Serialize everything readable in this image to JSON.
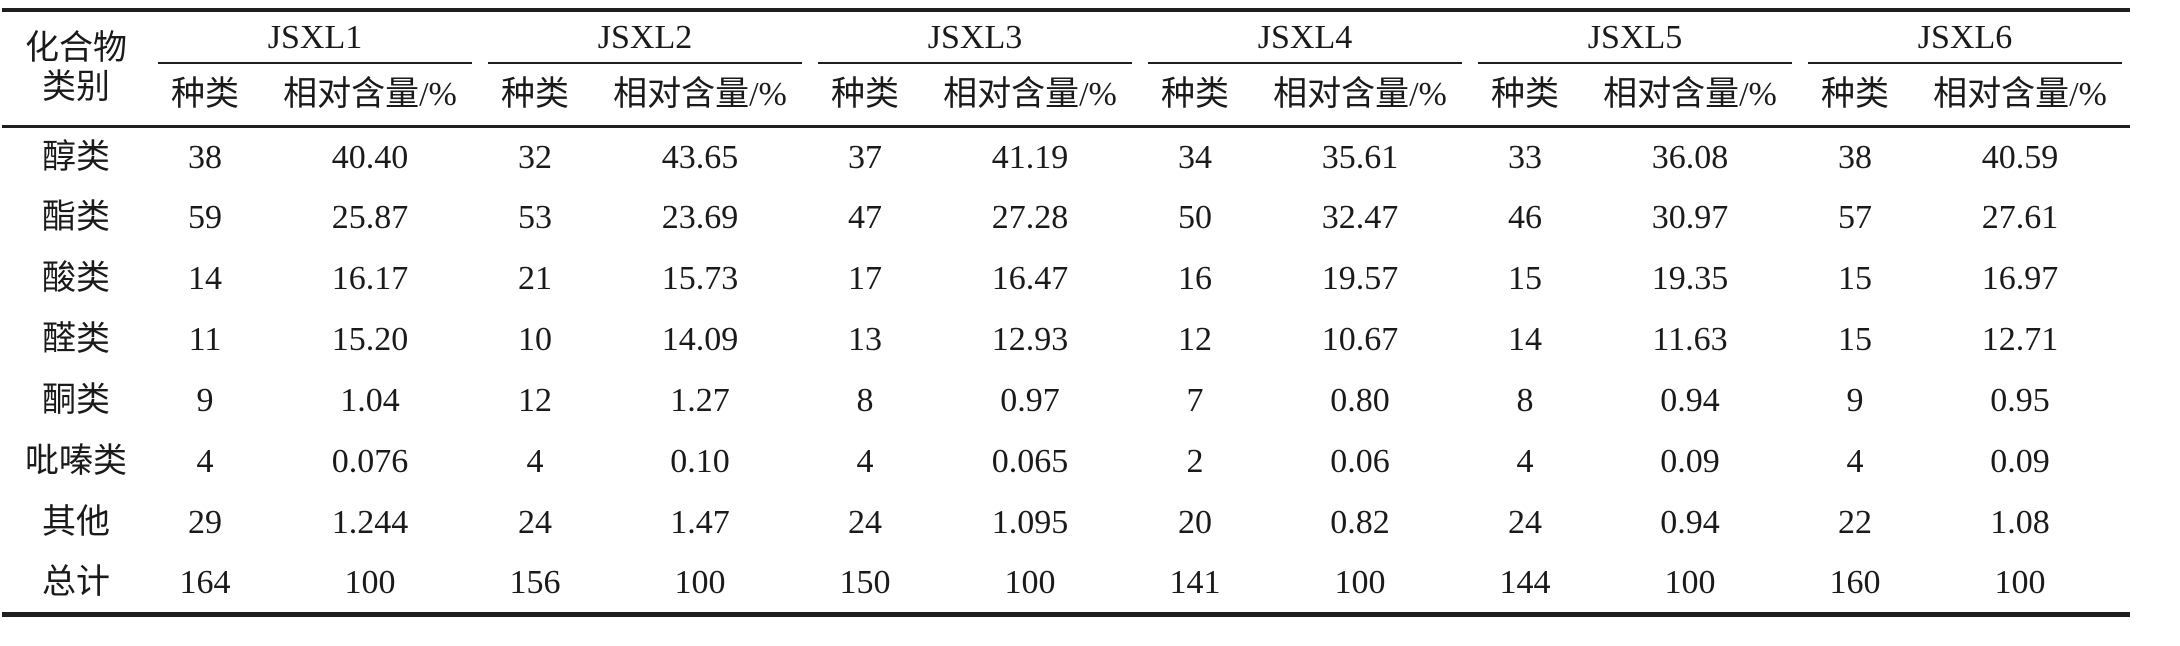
{
  "page": {
    "background": "#ffffff",
    "text_color": "#1a1a1a",
    "rule_color": "#1f1f1f"
  },
  "table": {
    "corner_header": {
      "line1": "化合物",
      "line2": "类别"
    },
    "groups": [
      {
        "label": "JSXL1"
      },
      {
        "label": "JSXL2"
      },
      {
        "label": "JSXL3"
      },
      {
        "label": "JSXL4"
      },
      {
        "label": "JSXL5"
      },
      {
        "label": "JSXL6"
      }
    ],
    "subheaders": {
      "species": "种类",
      "relative_content": "相对含量/%"
    },
    "rows": [
      {
        "category": "醇类",
        "cells": [
          "38",
          "40.40",
          "32",
          "43.65",
          "37",
          "41.19",
          "34",
          "35.61",
          "33",
          "36.08",
          "38",
          "40.59"
        ]
      },
      {
        "category": "酯类",
        "cells": [
          "59",
          "25.87",
          "53",
          "23.69",
          "47",
          "27.28",
          "50",
          "32.47",
          "46",
          "30.97",
          "57",
          "27.61"
        ]
      },
      {
        "category": "酸类",
        "cells": [
          "14",
          "16.17",
          "21",
          "15.73",
          "17",
          "16.47",
          "16",
          "19.57",
          "15",
          "19.35",
          "15",
          "16.97"
        ]
      },
      {
        "category": "醛类",
        "cells": [
          "11",
          "15.20",
          "10",
          "14.09",
          "13",
          "12.93",
          "12",
          "10.67",
          "14",
          "11.63",
          "15",
          "12.71"
        ]
      },
      {
        "category": "酮类",
        "cells": [
          "9",
          "1.04",
          "12",
          "1.27",
          "8",
          "0.97",
          "7",
          "0.80",
          "8",
          "0.94",
          "9",
          "0.95"
        ]
      },
      {
        "category": "吡嗪类",
        "cells": [
          "4",
          "0.076",
          "4",
          "0.10",
          "4",
          "0.065",
          "2",
          "0.06",
          "4",
          "0.09",
          "4",
          "0.09"
        ]
      },
      {
        "category": "其他",
        "cells": [
          "29",
          "1.244",
          "24",
          "1.47",
          "24",
          "1.095",
          "20",
          "0.82",
          "24",
          "0.94",
          "22",
          "1.08"
        ]
      },
      {
        "category": "总计",
        "cells": [
          "164",
          "100",
          "156",
          "100",
          "150",
          "100",
          "141",
          "100",
          "144",
          "100",
          "160",
          "100"
        ]
      }
    ]
  },
  "chart_data": {
    "type": "table",
    "title": "",
    "row_header": "化合物类别",
    "column_groups": [
      "JSXL1",
      "JSXL2",
      "JSXL3",
      "JSXL4",
      "JSXL5",
      "JSXL6"
    ],
    "sub_columns": [
      "种类",
      "相对含量/%"
    ],
    "rows": [
      {
        "category": "醇类",
        "values": [
          38,
          40.4,
          32,
          43.65,
          37,
          41.19,
          34,
          35.61,
          33,
          36.08,
          38,
          40.59
        ]
      },
      {
        "category": "酯类",
        "values": [
          59,
          25.87,
          53,
          23.69,
          47,
          27.28,
          50,
          32.47,
          46,
          30.97,
          57,
          27.61
        ]
      },
      {
        "category": "酸类",
        "values": [
          14,
          16.17,
          21,
          15.73,
          17,
          16.47,
          16,
          19.57,
          15,
          19.35,
          15,
          16.97
        ]
      },
      {
        "category": "醛类",
        "values": [
          11,
          15.2,
          10,
          14.09,
          13,
          12.93,
          12,
          10.67,
          14,
          11.63,
          15,
          12.71
        ]
      },
      {
        "category": "酮类",
        "values": [
          9,
          1.04,
          12,
          1.27,
          8,
          0.97,
          7,
          0.8,
          8,
          0.94,
          9,
          0.95
        ]
      },
      {
        "category": "吡嗪类",
        "values": [
          4,
          0.076,
          4,
          0.1,
          4,
          0.065,
          2,
          0.06,
          4,
          0.09,
          4,
          0.09
        ]
      },
      {
        "category": "其他",
        "values": [
          29,
          1.244,
          24,
          1.47,
          24,
          1.095,
          20,
          0.82,
          24,
          0.94,
          22,
          1.08
        ]
      },
      {
        "category": "总计",
        "values": [
          164,
          100,
          156,
          100,
          150,
          100,
          141,
          100,
          144,
          100,
          160,
          100
        ]
      }
    ]
  }
}
